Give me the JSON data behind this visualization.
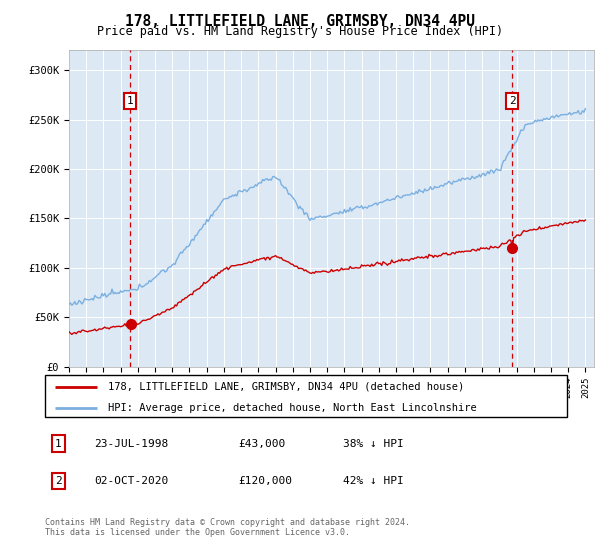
{
  "title": "178, LITTLEFIELD LANE, GRIMSBY, DN34 4PU",
  "subtitle": "Price paid vs. HM Land Registry's House Price Index (HPI)",
  "legend_line1": "178, LITTLEFIELD LANE, GRIMSBY, DN34 4PU (detached house)",
  "legend_line2": "HPI: Average price, detached house, North East Lincolnshire",
  "annotation1_date": "23-JUL-1998",
  "annotation1_price": "£43,000",
  "annotation1_hpi": "38% ↓ HPI",
  "annotation2_date": "02-OCT-2020",
  "annotation2_price": "£120,000",
  "annotation2_hpi": "42% ↓ HPI",
  "footnote": "Contains HM Land Registry data © Crown copyright and database right 2024.\nThis data is licensed under the Open Government Licence v3.0.",
  "red_color": "#cc0000",
  "blue_color": "#7aafe0",
  "background_color": "#dce9f5",
  "ylim": [
    0,
    320000
  ],
  "yticks": [
    0,
    50000,
    100000,
    150000,
    200000,
    250000,
    300000
  ],
  "ytick_labels": [
    "£0",
    "£50K",
    "£100K",
    "£150K",
    "£200K",
    "£250K",
    "£300K"
  ],
  "sale1_year": 1998.55,
  "sale1_price": 43000,
  "sale2_year": 2020.75,
  "sale2_price": 120000,
  "xmin": 1995,
  "xmax": 2025.5
}
